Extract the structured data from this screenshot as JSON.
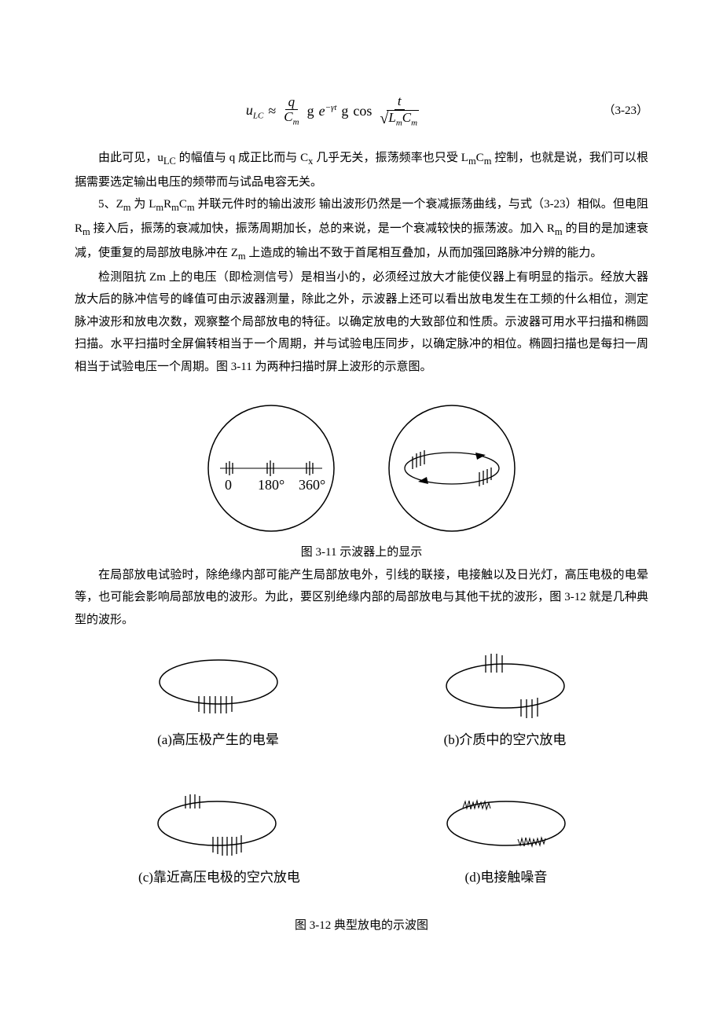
{
  "equation": {
    "number": "（3-23）",
    "lhs": "u",
    "lhs_sub": "LC",
    "approx": "≈",
    "q": "q",
    "Cm": "C",
    "Cm_sub": "m",
    "dot1": "g",
    "e": "e",
    "exp": "−γt",
    "dot2": "g",
    "cos": "cos",
    "t": "t",
    "Lm": "L",
    "Lm_sub": "m",
    "Cm2": "C",
    "Cm2_sub": "m"
  },
  "para1": "由此可见，u<sub>LC</sub> 的幅值与 q 成正比而与 C<sub>x</sub> 几乎无关，振荡频率也只受 L<sub>m</sub>C<sub>m</sub> 控制，也就是说，我们可以根据需要选定输出电压的频带而与试品电容无关。",
  "para2": "5、Z<sub>m</sub> 为 L<sub>m</sub>R<sub>m</sub>C<sub>m</sub> 并联元件时的输出波形  输出波形仍然是一个衰减振荡曲线，与式（3-23）相似。但电阻 R<sub>m</sub> 接入后，振荡的衰减加快，振荡周期加长，总的来说，是一个衰减较快的振荡波。加入 R<sub>m</sub> 的目的是加速衰减，使重复的局部放电脉冲在 Z<sub>m</sub> 上造成的输出不致于首尾相互叠加，从而加强回路脉冲分辨的能力。",
  "para3": "检测阻抗 Zm 上的电压（即检测信号）是相当小的，必须经过放大才能使仪器上有明显的指示。经放大器放大后的脉冲信号的峰值可由示波器测量，除此之外，示波器上还可以看出放电发生在工频的什么相位，测定脉冲波形和放电次数，观察整个局部放电的特征。以确定放电的大致部位和性质。示波器可用水平扫描和椭圆扫描。水平扫描时全屏偏转相当于一个周期，并与试验电压同步，以确定脉冲的相位。椭圆扫描也是每扫一周相当于试验电压一个周期。图 3-11 为两种扫描时屏上波形的示意图。",
  "fig311": {
    "caption": "图 3-11  示波器上的显示",
    "labels": {
      "zero": "0",
      "one80": "180°",
      "three60": "360°"
    }
  },
  "para4": "在局部放电试验时，除绝缘内部可能产生局部放电外，引线的联接，电接触以及日光灯，高压电极的电晕等，也可能会影响局部放电的波形。为此，要区别绝缘内部的局部放电与其他干扰的波形，图 3-12 就是几种典型的波形。",
  "fig312": {
    "caption": "图 3-12  典型放电的示波图",
    "a": "(a)高压极产生的电晕",
    "b": "(b)介质中的空穴放电",
    "c": "(c)靠近高压电极的空穴放电",
    "d": "(d)电接触噪音"
  },
  "style": {
    "stroke": "#000000",
    "stroke_width": 1.5,
    "background": "#ffffff"
  }
}
